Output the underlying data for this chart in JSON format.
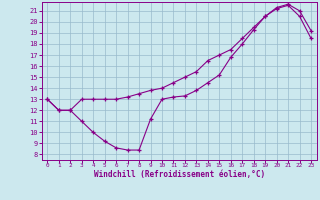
{
  "bg_color": "#cce8ee",
  "line_color": "#880088",
  "grid_color": "#99bbcc",
  "xlabel": "Windchill (Refroidissement éolien,°C)",
  "xlim": [
    -0.5,
    23.5
  ],
  "ylim": [
    7.5,
    21.8
  ],
  "xticks": [
    0,
    1,
    2,
    3,
    4,
    5,
    6,
    7,
    8,
    9,
    10,
    11,
    12,
    13,
    14,
    15,
    16,
    17,
    18,
    19,
    20,
    21,
    22,
    23
  ],
  "yticks": [
    8,
    9,
    10,
    11,
    12,
    13,
    14,
    15,
    16,
    17,
    18,
    19,
    20,
    21
  ],
  "line1_x": [
    0,
    1,
    2,
    3,
    4,
    5,
    6,
    7,
    8,
    9,
    10,
    11,
    12,
    13,
    14,
    15,
    16,
    17,
    18,
    19,
    20,
    21,
    22,
    23
  ],
  "line1_y": [
    13,
    12,
    12,
    11,
    10,
    9.2,
    8.6,
    8.4,
    8.4,
    11.2,
    13,
    13.2,
    13.3,
    13.8,
    14.5,
    15.2,
    16.8,
    18.0,
    19.3,
    20.5,
    21.3,
    21.6,
    21.0,
    19.2
  ],
  "line2_x": [
    0,
    1,
    2,
    3,
    4,
    5,
    6,
    7,
    8,
    9,
    10,
    11,
    12,
    13,
    14,
    15,
    16,
    17,
    18,
    19,
    20,
    21,
    22,
    23
  ],
  "line2_y": [
    13,
    12,
    12,
    13,
    13.0,
    13.0,
    13.0,
    13.2,
    13.5,
    13.8,
    14.0,
    14.5,
    15.0,
    15.5,
    16.5,
    17.0,
    17.5,
    18.5,
    19.5,
    20.5,
    21.2,
    21.5,
    20.5,
    18.5
  ]
}
